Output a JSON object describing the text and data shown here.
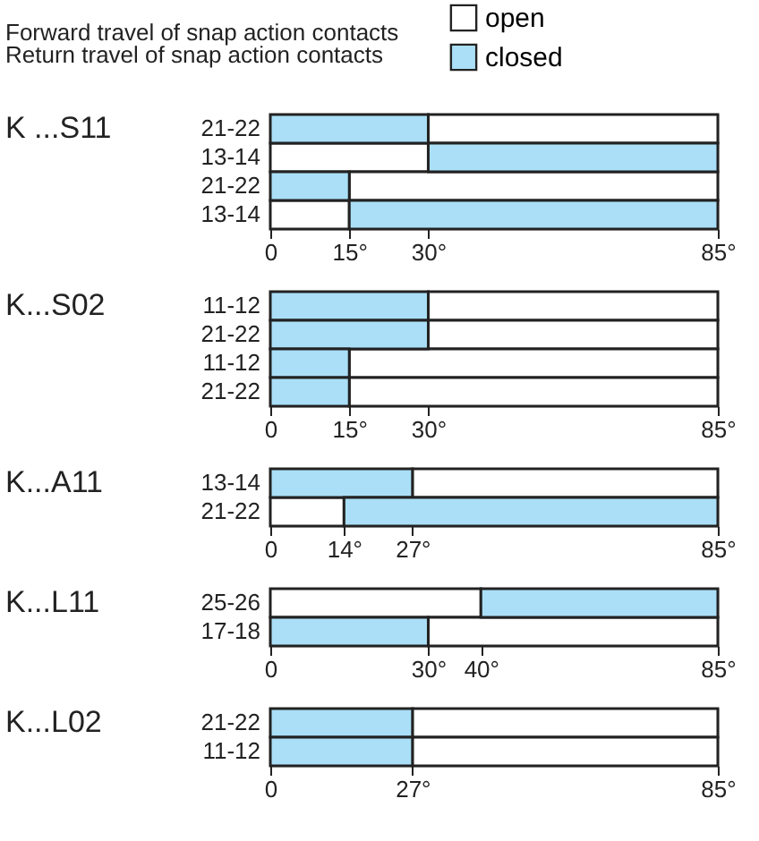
{
  "chart_data": [
    {
      "type": "bar",
      "orientation": "horizontal",
      "title": "K ...S11",
      "annotations": [
        "Forward travel of snap action contacts",
        "Return travel of snap action contacts"
      ],
      "legend": "top right",
      "categories": [
        "21-22",
        "13-14",
        "21-22",
        "13-14"
      ],
      "series": [
        {
          "name": "open",
          "color": "#ffffff",
          "base": [
            30,
            0,
            15,
            0
          ],
          "values": [
            55,
            30,
            70,
            15
          ]
        },
        {
          "name": "closed",
          "color": "#aadff7",
          "base": [
            0,
            30,
            0,
            15
          ],
          "values": [
            30,
            55,
            15,
            70
          ]
        }
      ],
      "xlim": [
        0,
        85
      ],
      "xticks": [
        0,
        {
          "value": 15,
          "label": "15°"
        },
        {
          "value": 30,
          "label": "30°"
        },
        {
          "value": 85,
          "label": "85°"
        }
      ]
    },
    {
      "type": "bar",
      "orientation": "horizontal",
      "title": "K...S02",
      "categories": [
        "11-12",
        "21-22",
        "11-12",
        "21-22"
      ],
      "series": [
        {
          "name": "open",
          "color": "#ffffff",
          "base": [
            30,
            30,
            15,
            15
          ],
          "values": [
            55,
            55,
            70,
            70
          ]
        },
        {
          "name": "closed",
          "color": "#aadff7",
          "base": [
            0,
            0,
            0,
            0
          ],
          "values": [
            30,
            30,
            15,
            15
          ]
        }
      ],
      "xlim": [
        0,
        85
      ],
      "xticks": [
        0,
        {
          "value": 15,
          "label": "15°"
        },
        {
          "value": 30,
          "label": "30°"
        },
        {
          "value": 85,
          "label": "85°"
        }
      ]
    },
    {
      "type": "bar",
      "orientation": "horizontal",
      "title": "K...A11",
      "categories": [
        "13-14",
        "21-22"
      ],
      "series": [
        {
          "name": "open",
          "color": "#ffffff",
          "base": [
            27,
            0
          ],
          "values": [
            58,
            14
          ]
        },
        {
          "name": "closed",
          "color": "#aadff7",
          "base": [
            0,
            14
          ],
          "values": [
            27,
            71
          ]
        }
      ],
      "xlim": [
        0,
        85
      ],
      "xticks": [
        0,
        {
          "value": 14,
          "label": "14°"
        },
        {
          "value": 27,
          "label": "27°"
        },
        {
          "value": 85,
          "label": "85°"
        }
      ]
    },
    {
      "type": "bar",
      "orientation": "horizontal",
      "title": "K...L11",
      "categories": [
        "25-26",
        "17-18"
      ],
      "series": [
        {
          "name": "open",
          "color": "#ffffff",
          "base": [
            0,
            30
          ],
          "values": [
            40,
            55
          ]
        },
        {
          "name": "closed",
          "color": "#aadff7",
          "base": [
            40,
            0
          ],
          "values": [
            45,
            30
          ]
        }
      ],
      "xlim": [
        0,
        85
      ],
      "xticks": [
        0,
        {
          "value": 30,
          "label": "30°"
        },
        {
          "value": 40,
          "label": "40°"
        },
        {
          "value": 85,
          "label": "85°"
        }
      ]
    },
    {
      "type": "bar",
      "orientation": "horizontal",
      "title": "K...L02",
      "categories": [
        "21-22",
        "11-12"
      ],
      "series": [
        {
          "name": "open",
          "color": "#ffffff",
          "base": [
            27,
            27
          ],
          "values": [
            58,
            58
          ]
        },
        {
          "name": "closed",
          "color": "#aadff7",
          "base": [
            0,
            0
          ],
          "values": [
            27,
            27
          ]
        }
      ],
      "xlim": [
        0,
        85
      ],
      "xticks": [
        0,
        {
          "value": 27,
          "label": "27°"
        },
        {
          "value": 85,
          "label": "85°"
        }
      ]
    }
  ]
}
